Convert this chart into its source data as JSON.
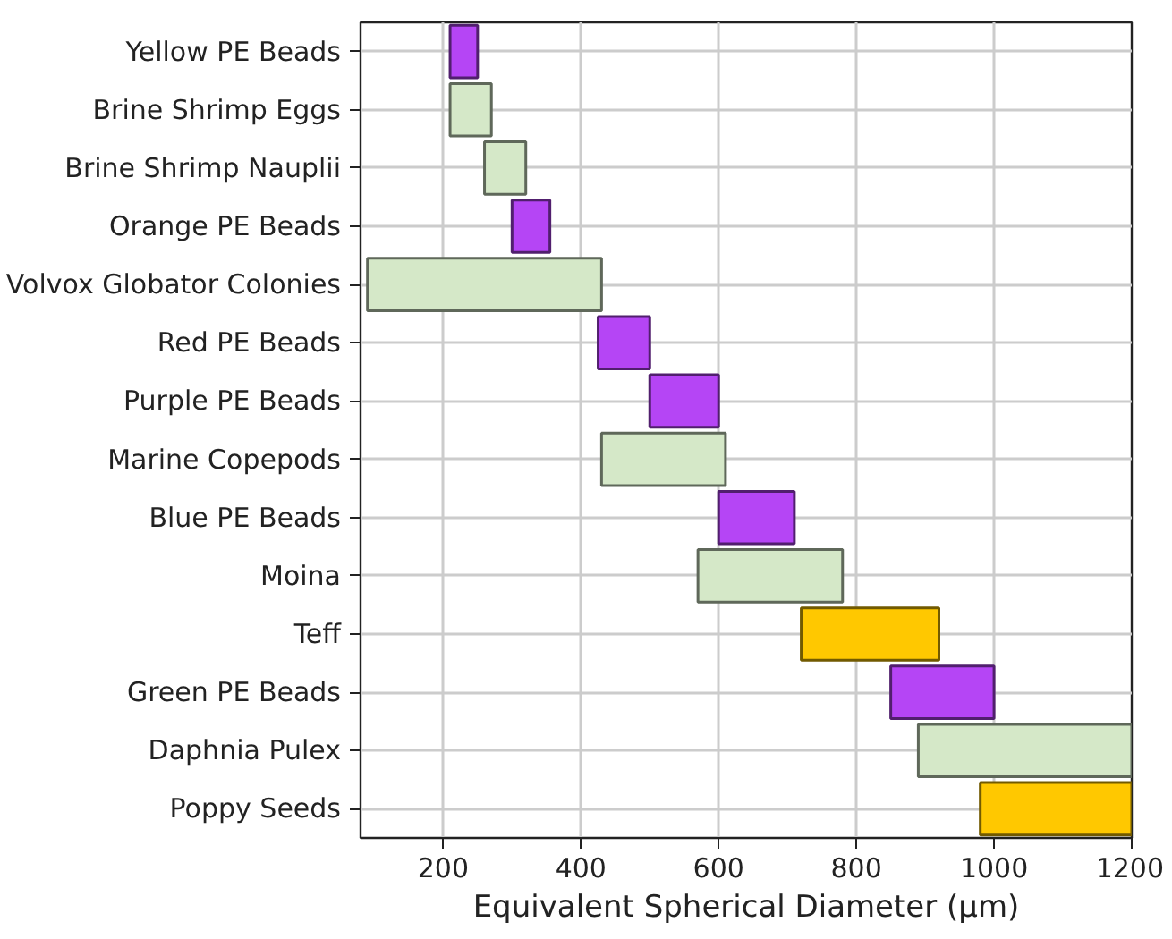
{
  "chart_data": {
    "type": "bar",
    "orientation": "horizontal",
    "xlabel": "Equivalent Spherical Diameter (μm)",
    "categories": [
      "Yellow PE Beads",
      "Brine Shrimp Eggs",
      "Brine Shrimp Nauplii",
      "Orange PE Beads",
      "Volvox Globator Colonies",
      "Red PE Beads",
      "Purple PE Beads",
      "Marine Copepods",
      "Blue PE Beads",
      "Moina",
      "Teff",
      "Green PE Beads",
      "Daphnia Pulex",
      "Poppy Seeds"
    ],
    "base": [
      210,
      210,
      260,
      300,
      90,
      425,
      500,
      430,
      600,
      570,
      720,
      850,
      890,
      980
    ],
    "values": [
      40,
      60,
      60,
      55,
      340,
      75,
      100,
      180,
      110,
      210,
      200,
      150,
      310,
      220
    ],
    "colors": [
      "#b545f5",
      "#d5e8c8",
      "#d5e8c8",
      "#b545f5",
      "#d5e8c8",
      "#b545f5",
      "#b545f5",
      "#d5e8c8",
      "#b545f5",
      "#d5e8c8",
      "#ffc800",
      "#b545f5",
      "#d5e8c8",
      "#ffc800"
    ],
    "xlim": [
      80,
      1200
    ],
    "xticks": [
      200,
      400,
      600,
      800,
      1000,
      1200
    ],
    "grid": true
  }
}
